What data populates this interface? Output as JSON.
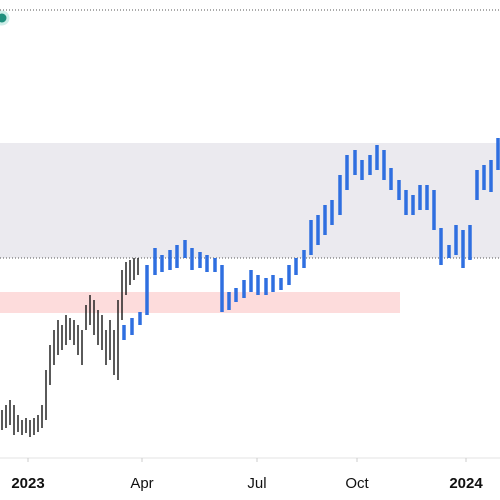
{
  "chart_data": {
    "type": "range-bar",
    "xlim": [
      0,
      500
    ],
    "ylim": [
      0,
      455
    ],
    "xticks": [
      {
        "value": 28,
        "label": "2023"
      },
      {
        "value": 142,
        "label": "Apr"
      },
      {
        "value": 257,
        "label": "Jul"
      },
      {
        "value": 357,
        "label": "Oct"
      },
      {
        "value": 466,
        "label": "2024"
      }
    ],
    "bold_ticks": [
      0,
      4
    ],
    "zones": [
      {
        "x": [
          0,
          500
        ],
        "y": [
          197,
          312
        ],
        "color": "#ebeaef"
      },
      {
        "x": [
          0,
          400
        ],
        "y": [
          142,
          163
        ],
        "color": "#fddcdc"
      }
    ],
    "levels": [
      445,
      197
    ],
    "series": [
      {
        "color": "#222222",
        "width": 1.5,
        "x": [
          2,
          6,
          10,
          14,
          18,
          22,
          26,
          30,
          34,
          38,
          42,
          46,
          50,
          54,
          58,
          62,
          66,
          70,
          74,
          78,
          82,
          86,
          90,
          94,
          98,
          102,
          106,
          110,
          114,
          118,
          122,
          126,
          130,
          134,
          138
        ],
        "high": [
          45,
          50,
          55,
          50,
          40,
          35,
          37,
          35,
          37,
          40,
          50,
          85,
          110,
          125,
          135,
          130,
          140,
          137,
          135,
          130,
          125,
          150,
          160,
          155,
          145,
          140,
          125,
          135,
          125,
          155,
          185,
          193,
          195,
          197,
          197
        ],
        "low": [
          25,
          27,
          30,
          20,
          23,
          20,
          22,
          18,
          20,
          23,
          27,
          35,
          70,
          90,
          100,
          105,
          110,
          115,
          110,
          100,
          90,
          125,
          130,
          120,
          110,
          105,
          90,
          95,
          80,
          75,
          135,
          160,
          170,
          175,
          180
        ]
      },
      {
        "color": "#2f6fe0",
        "width": 3.5,
        "x": [
          124,
          132,
          140,
          147,
          155,
          162,
          170,
          177,
          185,
          192,
          200,
          207,
          215,
          222,
          229,
          236,
          244,
          251,
          258,
          266,
          273,
          281,
          289,
          296,
          304,
          311,
          318,
          325,
          332,
          340,
          347,
          355,
          362,
          370,
          377,
          384,
          391,
          399,
          406,
          413,
          420,
          427,
          434,
          441,
          449,
          456,
          463,
          470,
          477,
          484,
          491,
          498
        ],
        "high": [
          130,
          137,
          143,
          190,
          207,
          200,
          205,
          210,
          215,
          207,
          203,
          200,
          197,
          190,
          163,
          167,
          175,
          185,
          180,
          177,
          180,
          177,
          190,
          197,
          205,
          235,
          240,
          250,
          255,
          280,
          300,
          305,
          295,
          300,
          310,
          305,
          287,
          275,
          265,
          260,
          270,
          270,
          265,
          227,
          210,
          230,
          225,
          230,
          285,
          290,
          295,
          317
        ],
        "low": [
          115,
          120,
          130,
          140,
          180,
          183,
          185,
          187,
          197,
          185,
          187,
          183,
          183,
          143,
          145,
          153,
          157,
          163,
          160,
          160,
          163,
          165,
          170,
          180,
          187,
          200,
          210,
          220,
          230,
          240,
          265,
          280,
          275,
          280,
          285,
          275,
          265,
          255,
          240,
          240,
          245,
          245,
          225,
          190,
          197,
          200,
          187,
          195,
          255,
          265,
          263,
          285
        ]
      }
    ]
  }
}
